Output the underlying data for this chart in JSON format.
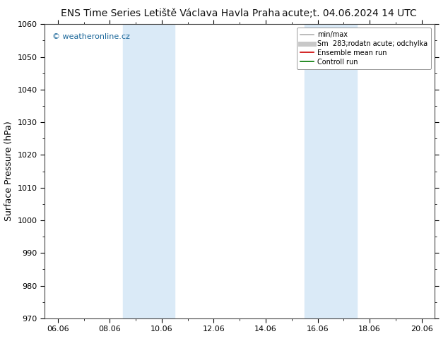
{
  "title_left": "ENS Time Series Letiště Václava Havla Praha",
  "title_right": "acute;t. 04.06.2024 14 UTC",
  "ylabel": "Surface Pressure (hPa)",
  "ylim": [
    970,
    1060
  ],
  "yticks": [
    970,
    980,
    990,
    1000,
    1010,
    1020,
    1030,
    1040,
    1050,
    1060
  ],
  "xtick_labels": [
    "06.06",
    "08.06",
    "10.06",
    "12.06",
    "14.06",
    "16.06",
    "18.06",
    "20.06"
  ],
  "xtick_positions": [
    0,
    2,
    4,
    6,
    8,
    10,
    12,
    14
  ],
  "xlim": [
    -0.5,
    14.5
  ],
  "shaded_regions": [
    {
      "xmin": 2.5,
      "xmax": 4.5,
      "color": "#daeaf7"
    },
    {
      "xmin": 9.5,
      "xmax": 11.5,
      "color": "#daeaf7"
    }
  ],
  "watermark": "© weatheronline.cz",
  "watermark_color": "#1a6699",
  "legend_items": [
    {
      "label": "min/max",
      "color": "#b0b0b0",
      "lw": 1.2,
      "style": "solid"
    },
    {
      "label": "Sm  283;rodatn acute; odchylka",
      "color": "#c8c8c8",
      "lw": 5,
      "style": "solid"
    },
    {
      "label": "Ensemble mean run",
      "color": "#cc0000",
      "lw": 1.2,
      "style": "solid"
    },
    {
      "label": "Controll run",
      "color": "#007700",
      "lw": 1.2,
      "style": "solid"
    }
  ],
  "background_color": "#ffffff",
  "plot_bg_color": "#ffffff",
  "title_fontsize": 10,
  "ylabel_fontsize": 9,
  "tick_fontsize": 8,
  "legend_fontsize": 7,
  "watermark_fontsize": 8
}
